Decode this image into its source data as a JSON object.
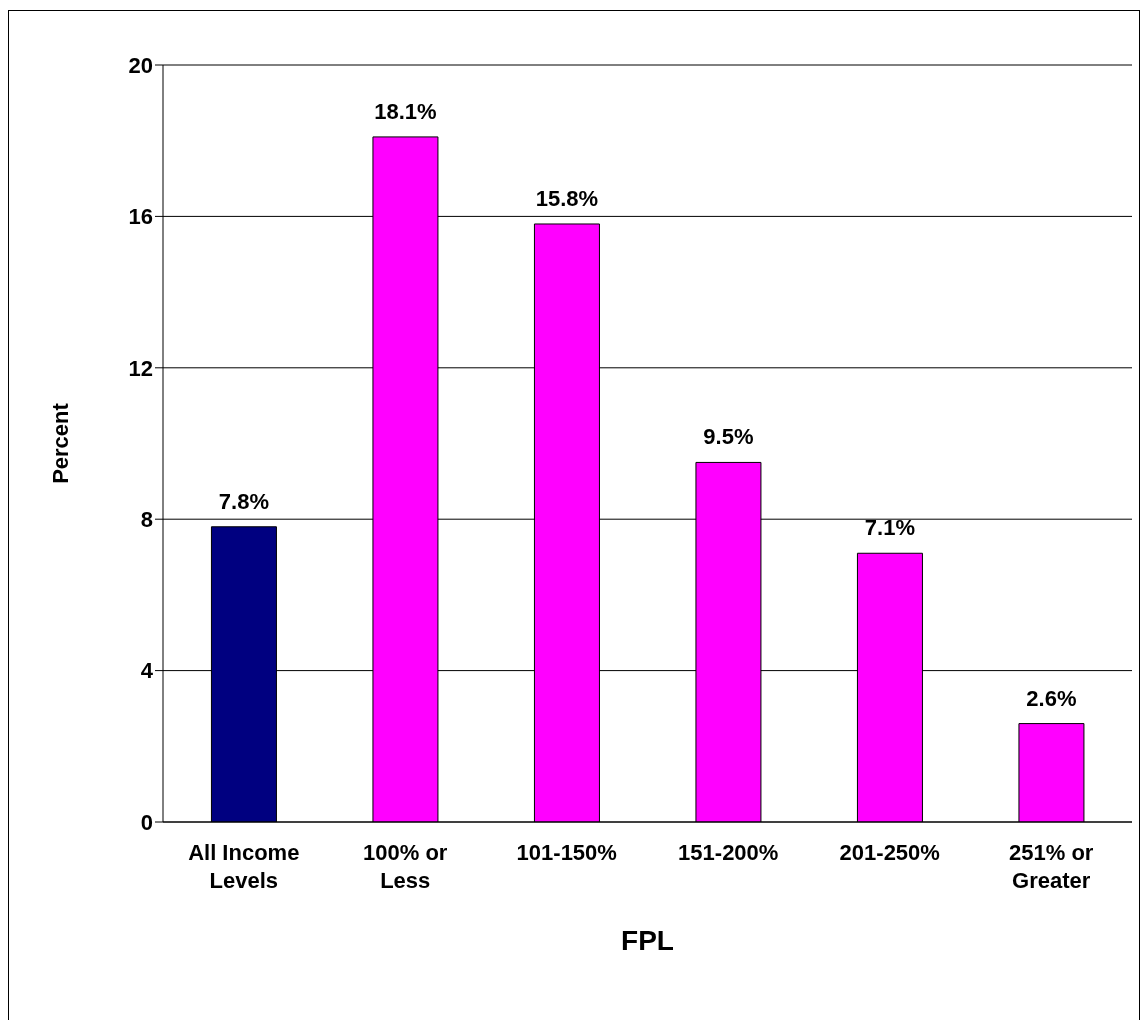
{
  "chart_data": {
    "type": "bar",
    "xlabel": "FPL",
    "ylabel": "Percent",
    "categories": [
      "All Income Levels",
      "100% or Less",
      "101-150%",
      "151-200%",
      "201-250%",
      "251% or Greater"
    ],
    "values": [
      7.8,
      18.1,
      15.8,
      9.5,
      7.1,
      2.6
    ],
    "colors": [
      "#000080",
      "#ff00ff",
      "#ff00ff",
      "#ff00ff",
      "#ff00ff",
      "#ff00ff"
    ],
    "value_labels": [
      "7.8%",
      "18.1%",
      "15.8%",
      "9.5%",
      "7.1%",
      "2.6%"
    ],
    "ylim": [
      0,
      20
    ],
    "yticks": [
      0,
      4,
      8,
      12,
      16,
      20
    ],
    "grid": "y",
    "legend": false
  }
}
